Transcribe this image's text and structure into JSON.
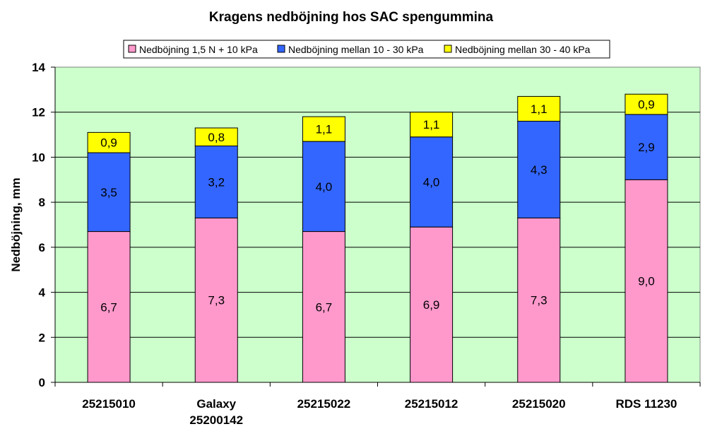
{
  "chart_data": {
    "type": "bar",
    "stacked": true,
    "title": "Kragens nedböjning hos SAC spengummina",
    "ylabel": "Nedböjning, mm",
    "xlabel": "",
    "ylim": [
      0,
      14
    ],
    "yticks": [
      0,
      2,
      4,
      6,
      8,
      10,
      12,
      14
    ],
    "grid": true,
    "legend_position": "top",
    "plot_background": "#CCFFCC",
    "categories": [
      [
        "25215010"
      ],
      [
        "Galaxy",
        "25200142"
      ],
      [
        "25215022"
      ],
      [
        "25215012"
      ],
      [
        "25215020"
      ],
      [
        "RDS 11230"
      ]
    ],
    "series": [
      {
        "name": "Nedböjning 1,5 N + 10 kPa",
        "color": "#FF99CC",
        "values": [
          6.7,
          7.3,
          6.7,
          6.9,
          7.3,
          9.0
        ],
        "labels": [
          "6,7",
          "7,3",
          "6,7",
          "6,9",
          "7,3",
          "9,0"
        ]
      },
      {
        "name": "Nedböjning mellan 10 - 30 kPa",
        "color": "#3366FF",
        "values": [
          3.5,
          3.2,
          4.0,
          4.0,
          4.3,
          2.9
        ],
        "labels": [
          "3,5",
          "3,2",
          "4,0",
          "4,0",
          "4,3",
          "2,9"
        ]
      },
      {
        "name": "Nedböjning mellan 30 - 40 kPa",
        "color": "#FFFF00",
        "values": [
          0.9,
          0.8,
          1.1,
          1.1,
          1.1,
          0.9
        ],
        "labels": [
          "0,9",
          "0,8",
          "1,1",
          "1,1",
          "1,1",
          "0,9"
        ]
      }
    ]
  }
}
